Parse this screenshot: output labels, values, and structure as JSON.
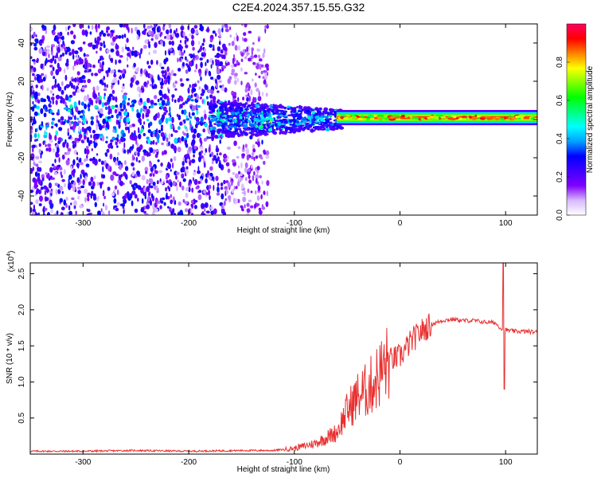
{
  "title": "C2E4.2024.357.15.55.G32",
  "chart_data": [
    {
      "type": "heatmap",
      "title": "C2E4.2024.357.15.55.G32",
      "xlabel": "Height of straight line (km)",
      "ylabel": "Frequency (Hz)",
      "xlim": [
        -350,
        130
      ],
      "ylim": [
        -50,
        50
      ],
      "xticks": [
        -300,
        -200,
        -100,
        0,
        100
      ],
      "yticks": [
        -40,
        -20,
        0,
        20,
        40
      ],
      "colorbar": {
        "label": "Normalized spectral amplitude",
        "range": [
          0.0,
          1.0
        ],
        "ticks": [
          0.0,
          0.2,
          0.4,
          0.6,
          0.8
        ],
        "tick_labels": [
          "0.0",
          "0.2",
          "0.4",
          "0.6",
          "0.8"
        ],
        "colormap": [
          "#ffffff",
          "#d8b8ff",
          "#8000ff",
          "#4000ff",
          "#0000ff",
          "#00a0ff",
          "#00ffff",
          "#00ff80",
          "#00ff00",
          "#80ff00",
          "#ffff00",
          "#ff8000",
          "#ff0000",
          "#ff0060"
        ]
      },
      "bands": [
        {
          "x_range": [
            -350,
            -165
          ],
          "freq_spread": 50,
          "amplitude": 0.25
        },
        {
          "x_range": [
            -165,
            -120
          ],
          "freq_spread": 50,
          "amplitude": 0.12
        },
        {
          "x_range": [
            -180,
            -60
          ],
          "freq_spread": 8,
          "amplitude": 0.4
        },
        {
          "x_range": [
            -60,
            130
          ],
          "freq_spread": 3,
          "amplitude": 0.95
        }
      ]
    },
    {
      "type": "line",
      "xlabel": "Height of straight line (km)",
      "ylabel": "SNR (10 * v/v)",
      "y_multiplier_label": "(x10",
      "y_multiplier_exp": "4",
      "xlim": [
        -350,
        130
      ],
      "ylim": [
        0,
        2.65
      ],
      "xticks": [
        -300,
        -200,
        -100,
        0,
        100
      ],
      "yticks": [
        0.5,
        1.0,
        1.5,
        2.0,
        2.5
      ],
      "ytick_labels": [
        "0.5",
        "1.0",
        "1.5",
        "2.0",
        "2.5"
      ],
      "color": "#e83030",
      "series": [
        {
          "x": [
            -350,
            -300,
            -250,
            -200,
            -150,
            -120,
            -100,
            -80,
            -60,
            -50,
            -40,
            -30,
            -20,
            -10,
            0,
            10,
            20,
            30,
            40,
            50,
            60,
            70,
            80,
            90,
            95,
            100,
            110,
            120,
            130
          ],
          "y": [
            0.04,
            0.04,
            0.05,
            0.04,
            0.05,
            0.05,
            0.08,
            0.15,
            0.3,
            0.6,
            0.8,
            0.9,
            1.1,
            1.3,
            1.35,
            1.55,
            1.7,
            1.8,
            1.85,
            1.87,
            1.85,
            1.85,
            1.83,
            1.82,
            1.75,
            1.72,
            1.7,
            1.7,
            1.69
          ]
        }
      ],
      "spikes": [
        {
          "x": 98,
          "y": 2.65
        },
        {
          "x": 98.5,
          "y": 0.9
        }
      ]
    }
  ]
}
